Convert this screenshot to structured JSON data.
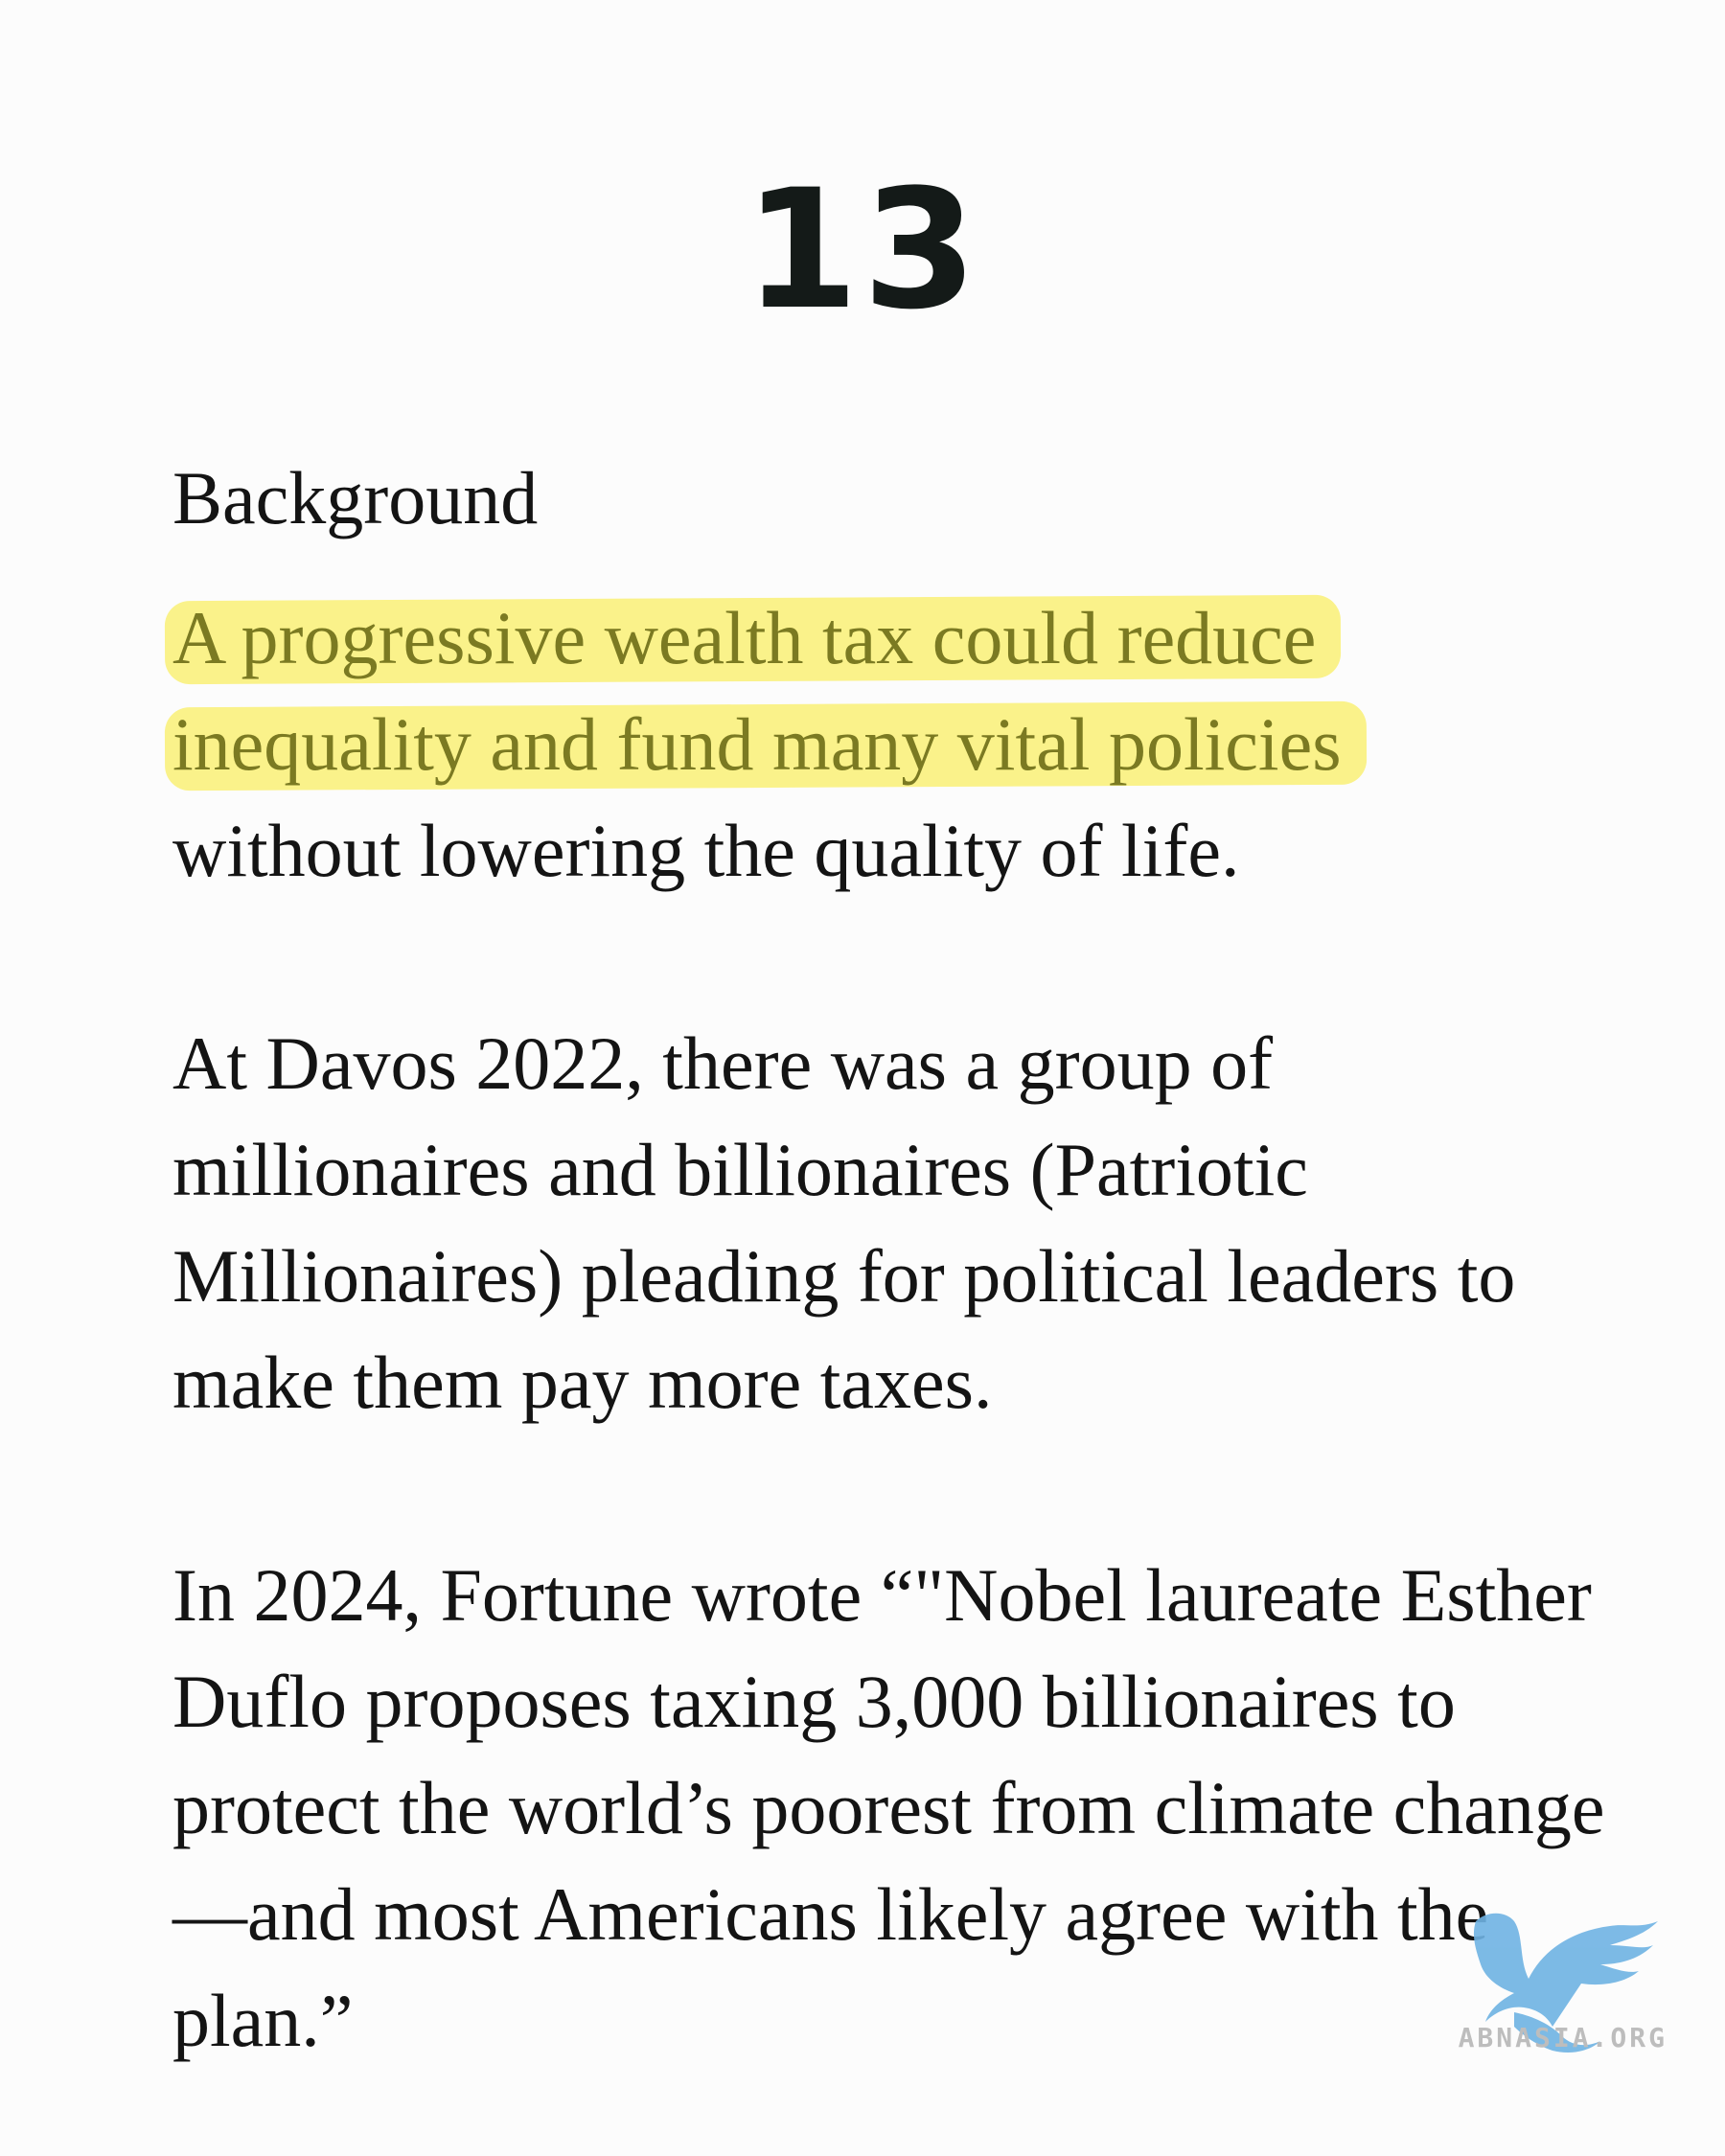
{
  "page_number": "13",
  "heading": "Background",
  "paragraph1": {
    "highlight_line1": "A progressive wealth tax could reduce",
    "highlight_line2": "inequality and fund many vital policies",
    "rest": "without lowering the quality of life."
  },
  "paragraph2": "At Davos 2022, there was a group of millionaires and billionaires (Patriotic Millionaires) pleading for political leaders to make them pay more taxes.",
  "paragraph3": "In 2024, Fortune wrote “\"Nobel laureate Esther Duflo proposes taxing 3,000 billionaires to protect the world’s poorest from climate change—and most Americans likely agree with the plan.”",
  "watermark": {
    "text": "ABNASIA.ORG",
    "icon": "griffin-logo-icon",
    "color": "#6fb3e3"
  },
  "colors": {
    "highlight": "#faf28a",
    "highlighted_text": "#7b7a22"
  }
}
